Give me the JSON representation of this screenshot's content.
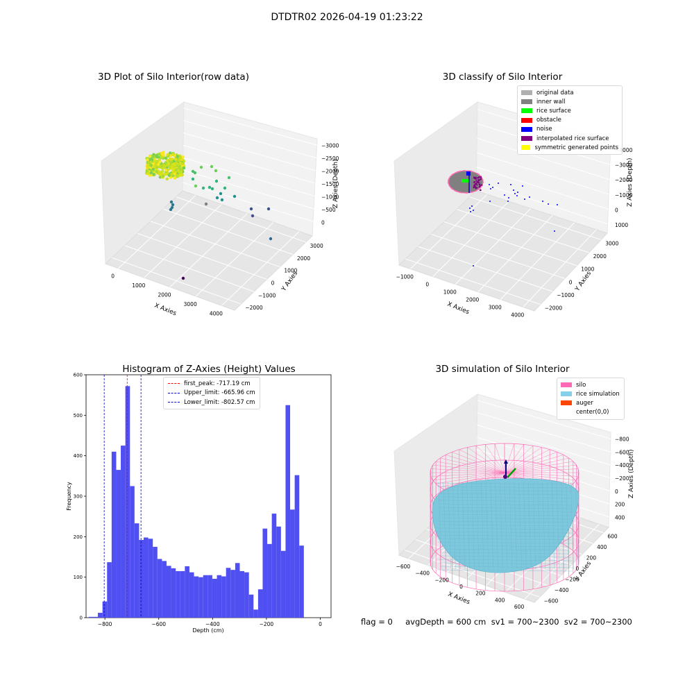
{
  "figure": {
    "suptitle": "DTDTR02 2026-04-19 01:23:22",
    "footer": "flag = 0     avgDepth = 600 cm  sv1 = 700~2300  sv2 = 700~2300"
  },
  "colors": {
    "histogram_bar": "#5050f2",
    "first_peak_line": "#ff0000",
    "limit_line": "#0000cc",
    "silo_wire": "#ff69b4",
    "rice_surface": "#7ec8dd",
    "auger": "#ff4500"
  },
  "chart_data": [
    {
      "type": "scatter",
      "projection": "3d",
      "title": "3D Plot of Silo Interior(row data)",
      "xlabel": "X Axies",
      "ylabel": "Y Axies",
      "zlabel": "Z Axies (Depth)",
      "x_ticks": [
        "0",
        "1000",
        "2000",
        "3000",
        "4000"
      ],
      "y_ticks": [
        "−2000",
        "−1000",
        "0",
        "1000",
        "2000",
        "3000"
      ],
      "z_ticks": [
        "0",
        "−500",
        "−1000",
        "−1500",
        "−2000",
        "−2500",
        "−3000"
      ],
      "colormap": "viridis"
    },
    {
      "type": "scatter",
      "projection": "3d",
      "title": "3D classify of Silo Interior",
      "xlabel": "X Axies",
      "ylabel": "Y Axies",
      "zlabel": "Z Axies (Depth)",
      "x_ticks": [
        "−1000",
        "0",
        "1000",
        "2000",
        "3000",
        "4000"
      ],
      "y_ticks": [
        "−2000",
        "−1000",
        "0",
        "1000",
        "2000",
        "3000"
      ],
      "z_ticks": [
        "1000",
        "0",
        "−1000",
        "−2000",
        "−3000",
        "−4000"
      ],
      "legend": [
        {
          "label": "original data",
          "color": "#b0b0b0"
        },
        {
          "label": "inner wall",
          "color": "#808080"
        },
        {
          "label": "rice surface",
          "color": "#00ff00"
        },
        {
          "label": "obstacle",
          "color": "#ff0000"
        },
        {
          "label": "noise",
          "color": "#0000ff"
        },
        {
          "label": "interpolated rice surface",
          "color": "#800080"
        },
        {
          "label": "symmetric generated points",
          "color": "#ffff00"
        }
      ],
      "legend_position": "top-right"
    },
    {
      "type": "bar",
      "title": "Histogram of Z-Axies (Height) Values",
      "xlabel": "Depth (cm)",
      "ylabel": "Frequency",
      "xlim": [
        -870,
        40
      ],
      "ylim": [
        0,
        600
      ],
      "x_ticks": [
        -800,
        -600,
        -400,
        -200,
        0
      ],
      "y_ticks": [
        0,
        100,
        200,
        300,
        400,
        500,
        600
      ],
      "bin_width": 17,
      "bin_start": -860,
      "values": [
        2,
        2,
        12,
        40,
        137,
        410,
        365,
        425,
        572,
        325,
        233,
        192,
        198,
        195,
        175,
        145,
        140,
        128,
        122,
        115,
        115,
        127,
        112,
        102,
        100,
        105,
        105,
        96,
        105,
        102,
        123,
        118,
        135,
        115,
        112,
        57,
        20,
        70,
        220,
        182,
        257,
        225,
        165,
        525,
        267,
        352,
        178
      ],
      "vlines": [
        {
          "label": "first_peak: -717.19 cm",
          "x": -717.19,
          "color": "#ff0000"
        },
        {
          "label": "Upper_limit: -665.96 cm",
          "x": -665.96,
          "color": "#0000cc"
        },
        {
          "label": "Lower_limit: -802.57 cm",
          "x": -802.57,
          "color": "#0000cc"
        }
      ],
      "legend_position": "top-center"
    },
    {
      "type": "area",
      "projection": "3d",
      "title": "3D simulation of Silo Interior",
      "xlabel": "X Axies",
      "ylabel": "Y Axies",
      "zlabel": "Z Axies (Depth)",
      "x_ticks": [
        "−600",
        "−400",
        "−200",
        "0",
        "200",
        "400",
        "600"
      ],
      "y_ticks": [
        "−600",
        "−400",
        "−200",
        "0",
        "200",
        "400",
        "600"
      ],
      "z_ticks": [
        "400",
        "200",
        "0",
        "−200",
        "−400",
        "−600",
        "−800"
      ],
      "legend": [
        {
          "label": "silo",
          "color": "#ff69b4"
        },
        {
          "label": "rice simulation",
          "color": "#87ceeb"
        },
        {
          "label": "auger",
          "color": "#ff4500"
        },
        {
          "label": "center(0,0)",
          "color": ""
        }
      ],
      "legend_position": "top-right"
    }
  ]
}
